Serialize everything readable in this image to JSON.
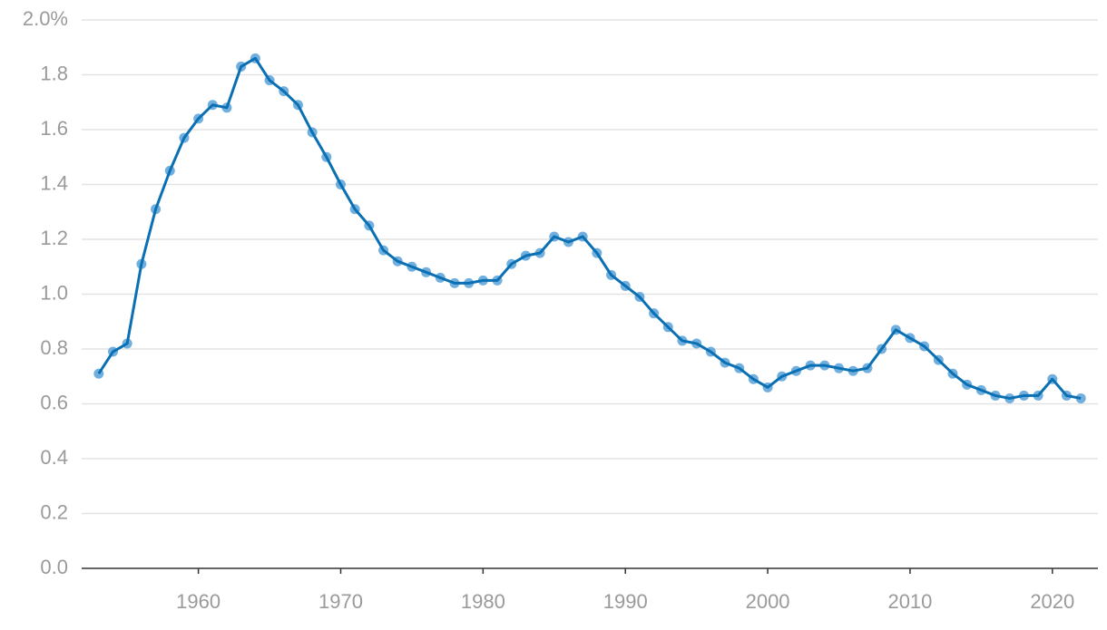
{
  "chart_data": {
    "type": "line",
    "x": [
      1953,
      1954,
      1955,
      1956,
      1957,
      1958,
      1959,
      1960,
      1961,
      1962,
      1963,
      1964,
      1965,
      1966,
      1967,
      1968,
      1969,
      1970,
      1971,
      1972,
      1973,
      1974,
      1975,
      1976,
      1977,
      1978,
      1979,
      1980,
      1981,
      1982,
      1983,
      1984,
      1985,
      1986,
      1987,
      1988,
      1989,
      1990,
      1991,
      1992,
      1993,
      1994,
      1995,
      1996,
      1997,
      1998,
      1999,
      2000,
      2001,
      2002,
      2003,
      2004,
      2005,
      2006,
      2007,
      2008,
      2009,
      2010,
      2011,
      2012,
      2013,
      2014,
      2015,
      2016,
      2017,
      2018,
      2019,
      2020,
      2021,
      2022
    ],
    "values": [
      0.71,
      0.79,
      0.82,
      1.11,
      1.31,
      1.45,
      1.57,
      1.64,
      1.69,
      1.68,
      1.83,
      1.86,
      1.78,
      1.74,
      1.69,
      1.59,
      1.5,
      1.4,
      1.31,
      1.25,
      1.16,
      1.12,
      1.1,
      1.08,
      1.06,
      1.04,
      1.04,
      1.05,
      1.05,
      1.11,
      1.14,
      1.15,
      1.21,
      1.19,
      1.21,
      1.15,
      1.07,
      1.03,
      0.99,
      0.93,
      0.88,
      0.83,
      0.82,
      0.79,
      0.75,
      0.73,
      0.69,
      0.66,
      0.7,
      0.72,
      0.74,
      0.74,
      0.73,
      0.72,
      0.73,
      0.8,
      0.87,
      0.84,
      0.81,
      0.76,
      0.71,
      0.67,
      0.65,
      0.63,
      0.62,
      0.63,
      0.63,
      0.69,
      0.63,
      0.62
    ],
    "color": "#0a70b3",
    "marker_color": "#4d9bd6",
    "xlim": [
      1951.8,
      2023.2
    ],
    "xticks": [
      1960,
      1970,
      1980,
      1990,
      2000,
      2010,
      2020
    ],
    "ylim": [
      0,
      2
    ],
    "yticks": [
      {
        "value": 0,
        "label": "0.0"
      },
      0.2,
      0.4,
      0.6,
      0.8,
      {
        "value": 1,
        "label": "1.0"
      },
      1.2,
      1.4,
      1.6,
      1.8,
      {
        "value": 2,
        "label": "2.0%"
      }
    ],
    "grid": true
  }
}
